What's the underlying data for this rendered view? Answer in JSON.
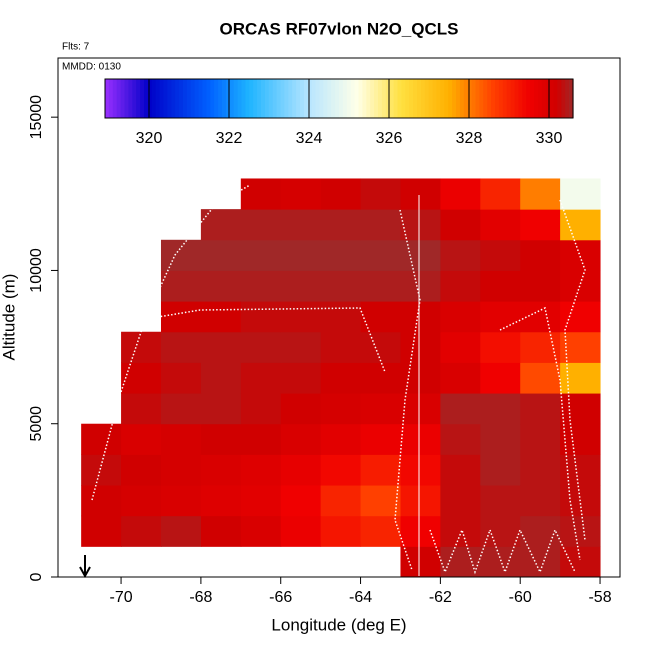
{
  "chart_data": {
    "type": "heatmap",
    "title": "ORCAS RF07vlon N2O_QCLS",
    "note_flights": "Flts: 7",
    "note_date": "MMDD: 0130",
    "x_label": "Longitude (deg E)",
    "y_label": "Altitude (m)",
    "xlim": [
      -71.58,
      -57.5
    ],
    "ylim": [
      0,
      16930
    ],
    "xticks": [
      -70,
      -68,
      -66,
      -64,
      -62,
      -60,
      -58
    ],
    "yticks": [
      0,
      5000,
      10000,
      15000
    ],
    "xbins": [
      -71,
      -70,
      -69,
      -68,
      -67,
      -66,
      -65,
      -64,
      -63,
      -62,
      -61,
      -60,
      -59,
      -58
    ],
    "ybins": [
      0,
      1000,
      2000,
      3000,
      4000,
      5000,
      6000,
      7000,
      8000,
      9000,
      10000,
      11000,
      12000,
      13000
    ],
    "values": [
      [
        null,
        null,
        null,
        null,
        null,
        null,
        null,
        null,
        330.2,
        330.5,
        330.5,
        330.5,
        330.3
      ],
      [
        330.2,
        330.3,
        330.4,
        330.2,
        330,
        329.6,
        329.2,
        329,
        329.5,
        330.3,
        330.4,
        330.5,
        330.4
      ],
      [
        330.2,
        330.1,
        330,
        329.9,
        329.8,
        329.5,
        329,
        328.6,
        329.2,
        330.3,
        330.4,
        330.4,
        330.3
      ],
      [
        330.3,
        330.2,
        330.1,
        330,
        329.9,
        329.7,
        329.4,
        329.1,
        329.4,
        330.3,
        330.5,
        330.4,
        330.3
      ],
      [
        330.2,
        330,
        330.1,
        330.2,
        330.2,
        330,
        329.8,
        329.6,
        329.6,
        330.4,
        330.5,
        330.4,
        330.2
      ],
      [
        null,
        330.3,
        330.4,
        330.4,
        330.3,
        330.2,
        330.1,
        330,
        330,
        330.5,
        330.5,
        330.4,
        330.2
      ],
      [
        null,
        330.2,
        330.3,
        330.4,
        330.3,
        330.3,
        330.2,
        330.2,
        330.2,
        330,
        329.5,
        328.5,
        327.5
      ],
      [
        null,
        330.3,
        330.4,
        330.4,
        330.4,
        330.4,
        330.3,
        330.3,
        330.2,
        329.8,
        329.3,
        329,
        328.6
      ],
      [
        null,
        null,
        330.2,
        330.2,
        330.3,
        330.3,
        330.3,
        330.2,
        330.2,
        330,
        329.8,
        329.8,
        329.5
      ],
      [
        null,
        null,
        330.5,
        330.5,
        330.5,
        330.5,
        330.5,
        330.5,
        330.5,
        330.3,
        330.2,
        330.2,
        330
      ],
      [
        null,
        null,
        330.6,
        330.6,
        330.6,
        330.6,
        330.6,
        330.6,
        330.6,
        330.4,
        330.3,
        330.2,
        330
      ],
      [
        null,
        null,
        null,
        330.5,
        330.5,
        330.5,
        330.5,
        330.5,
        330.4,
        330.2,
        329.8,
        329.5,
        327.5
      ],
      [
        null,
        null,
        null,
        null,
        330.2,
        330.1,
        330.2,
        330.3,
        330.2,
        329.6,
        329,
        328,
        325
      ]
    ],
    "clim": [
      318.9,
      330.6
    ],
    "cticks": [
      320,
      322,
      324,
      326,
      328,
      330
    ],
    "colormap": [
      {
        "value": 318.9,
        "color": "#9b30ff"
      },
      {
        "value": 320,
        "color": "#0000c8"
      },
      {
        "value": 321.5,
        "color": "#0060ff"
      },
      {
        "value": 322.5,
        "color": "#1eb4ff"
      },
      {
        "value": 324,
        "color": "#b8e6ff"
      },
      {
        "value": 325.2,
        "color": "#ffffe8"
      },
      {
        "value": 326.3,
        "color": "#ffe040"
      },
      {
        "value": 327.5,
        "color": "#ffb000"
      },
      {
        "value": 328.6,
        "color": "#ff4000"
      },
      {
        "value": 329.5,
        "color": "#f00000"
      },
      {
        "value": 330.2,
        "color": "#d00000"
      },
      {
        "value": 330.6,
        "color": "#a02828"
      }
    ]
  }
}
